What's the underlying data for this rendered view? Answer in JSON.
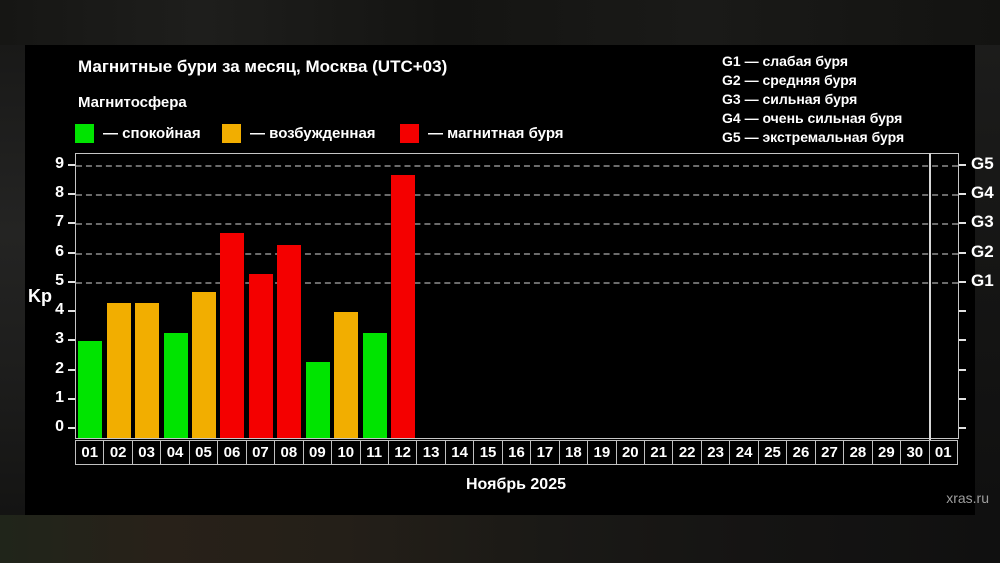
{
  "header": {
    "title": "Магнитные бури за месяц, Москва (UTC+03)",
    "subtitle": "Магнитосфера",
    "watermark": "xras.ru"
  },
  "legend": {
    "items": [
      {
        "label": "— спокойная",
        "status": "quiet"
      },
      {
        "label": "— возбужденная",
        "status": "unsettled"
      },
      {
        "label": "— магнитная буря",
        "status": "storm"
      }
    ]
  },
  "storm_scale": {
    "items": [
      "G1 — слабая буря",
      "G2 — средняя буря",
      "G3 — сильная буря",
      "G4 — очень сильная буря",
      "G5 — экстремальная буря"
    ]
  },
  "chart_data": {
    "type": "bar",
    "title": "Магнитные бури за месяц, Москва (UTC+03)",
    "xlabel": "Ноябрь 2025",
    "ylabel": "Kp",
    "ylim": [
      0,
      9
    ],
    "yticks": [
      0,
      1,
      2,
      3,
      4,
      5,
      6,
      7,
      8,
      9
    ],
    "grid_levels": [
      5,
      6,
      7,
      8,
      9
    ],
    "right_axis_labels": {
      "5": "G1",
      "6": "G2",
      "7": "G3",
      "8": "G4",
      "9": "G5"
    },
    "categories": [
      "01",
      "02",
      "03",
      "04",
      "05",
      "06",
      "07",
      "08",
      "09",
      "10",
      "11",
      "12",
      "13",
      "14",
      "15",
      "16",
      "17",
      "18",
      "19",
      "20",
      "21",
      "22",
      "23",
      "24",
      "25",
      "26",
      "27",
      "28",
      "29",
      "30",
      "01"
    ],
    "month_separator_index": 30,
    "bars": [
      {
        "day": "01",
        "value": 3.0,
        "status": "quiet"
      },
      {
        "day": "02",
        "value": 4.3,
        "status": "unsettled"
      },
      {
        "day": "03",
        "value": 4.3,
        "status": "unsettled"
      },
      {
        "day": "04",
        "value": 3.3,
        "status": "quiet"
      },
      {
        "day": "05",
        "value": 4.7,
        "status": "unsettled"
      },
      {
        "day": "06",
        "value": 6.7,
        "status": "storm"
      },
      {
        "day": "07",
        "value": 5.3,
        "status": "storm"
      },
      {
        "day": "08",
        "value": 6.3,
        "status": "storm"
      },
      {
        "day": "09",
        "value": 2.3,
        "status": "quiet"
      },
      {
        "day": "10",
        "value": 4.0,
        "status": "unsettled"
      },
      {
        "day": "11",
        "value": 3.3,
        "status": "quiet"
      },
      {
        "day": "12",
        "value": 8.7,
        "status": "storm"
      }
    ],
    "status_colors": {
      "quiet": "#00e400",
      "unsettled": "#f2ae00",
      "storm": "#f40000"
    },
    "legend_position": "top-left",
    "grid": "dashed horizontal at storm levels only"
  }
}
